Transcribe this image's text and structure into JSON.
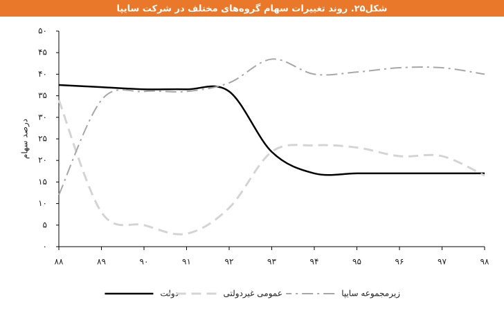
{
  "chart_data": {
    "type": "line",
    "title": "شکل۲۵. روند تغییرات سهام گروه‌های مختلف در شرکت سایپا",
    "y_label": "درصد سهام",
    "categories": [
      "۸۸",
      "۸۹",
      "۹۰",
      "۹۱",
      "۹۲",
      "۹۳",
      "۹۴",
      "۹۵",
      "۹۶",
      "۹۷",
      "۹۸"
    ],
    "series": [
      {
        "name": "دولت",
        "color": "#000000",
        "dash": "solid",
        "values": [
          37.5,
          37,
          36.5,
          36.5,
          36,
          22,
          17,
          17,
          17,
          17,
          17
        ]
      },
      {
        "name": "عمومی غیردولتی",
        "color": "#d4d4d4",
        "dash": "dash",
        "values": [
          34,
          8,
          5,
          3,
          9,
          22,
          23.5,
          23,
          21,
          21,
          16.5
        ]
      },
      {
        "name": "زیرمجموعه سایپا",
        "color": "#a6a6a6",
        "dash": "dashdot",
        "values": [
          12,
          34,
          36,
          36,
          38,
          43.5,
          40,
          40.5,
          41.5,
          41.5,
          40
        ]
      }
    ],
    "ylim": [
      0,
      50
    ],
    "yticks": [
      {
        "value": 0,
        "label": "۰"
      },
      {
        "value": 5,
        "label": "۵"
      },
      {
        "value": 10,
        "label": "۱۰"
      },
      {
        "value": 15,
        "label": "۱۵"
      },
      {
        "value": 20,
        "label": "۲۰"
      },
      {
        "value": 25,
        "label": "۲۵"
      },
      {
        "value": 30,
        "label": "۳۰"
      },
      {
        "value": 35,
        "label": "۳۵"
      },
      {
        "value": 40,
        "label": "۴۰"
      },
      {
        "value": 45,
        "label": "۴۵"
      },
      {
        "value": 50,
        "label": "۵۰"
      }
    ]
  }
}
